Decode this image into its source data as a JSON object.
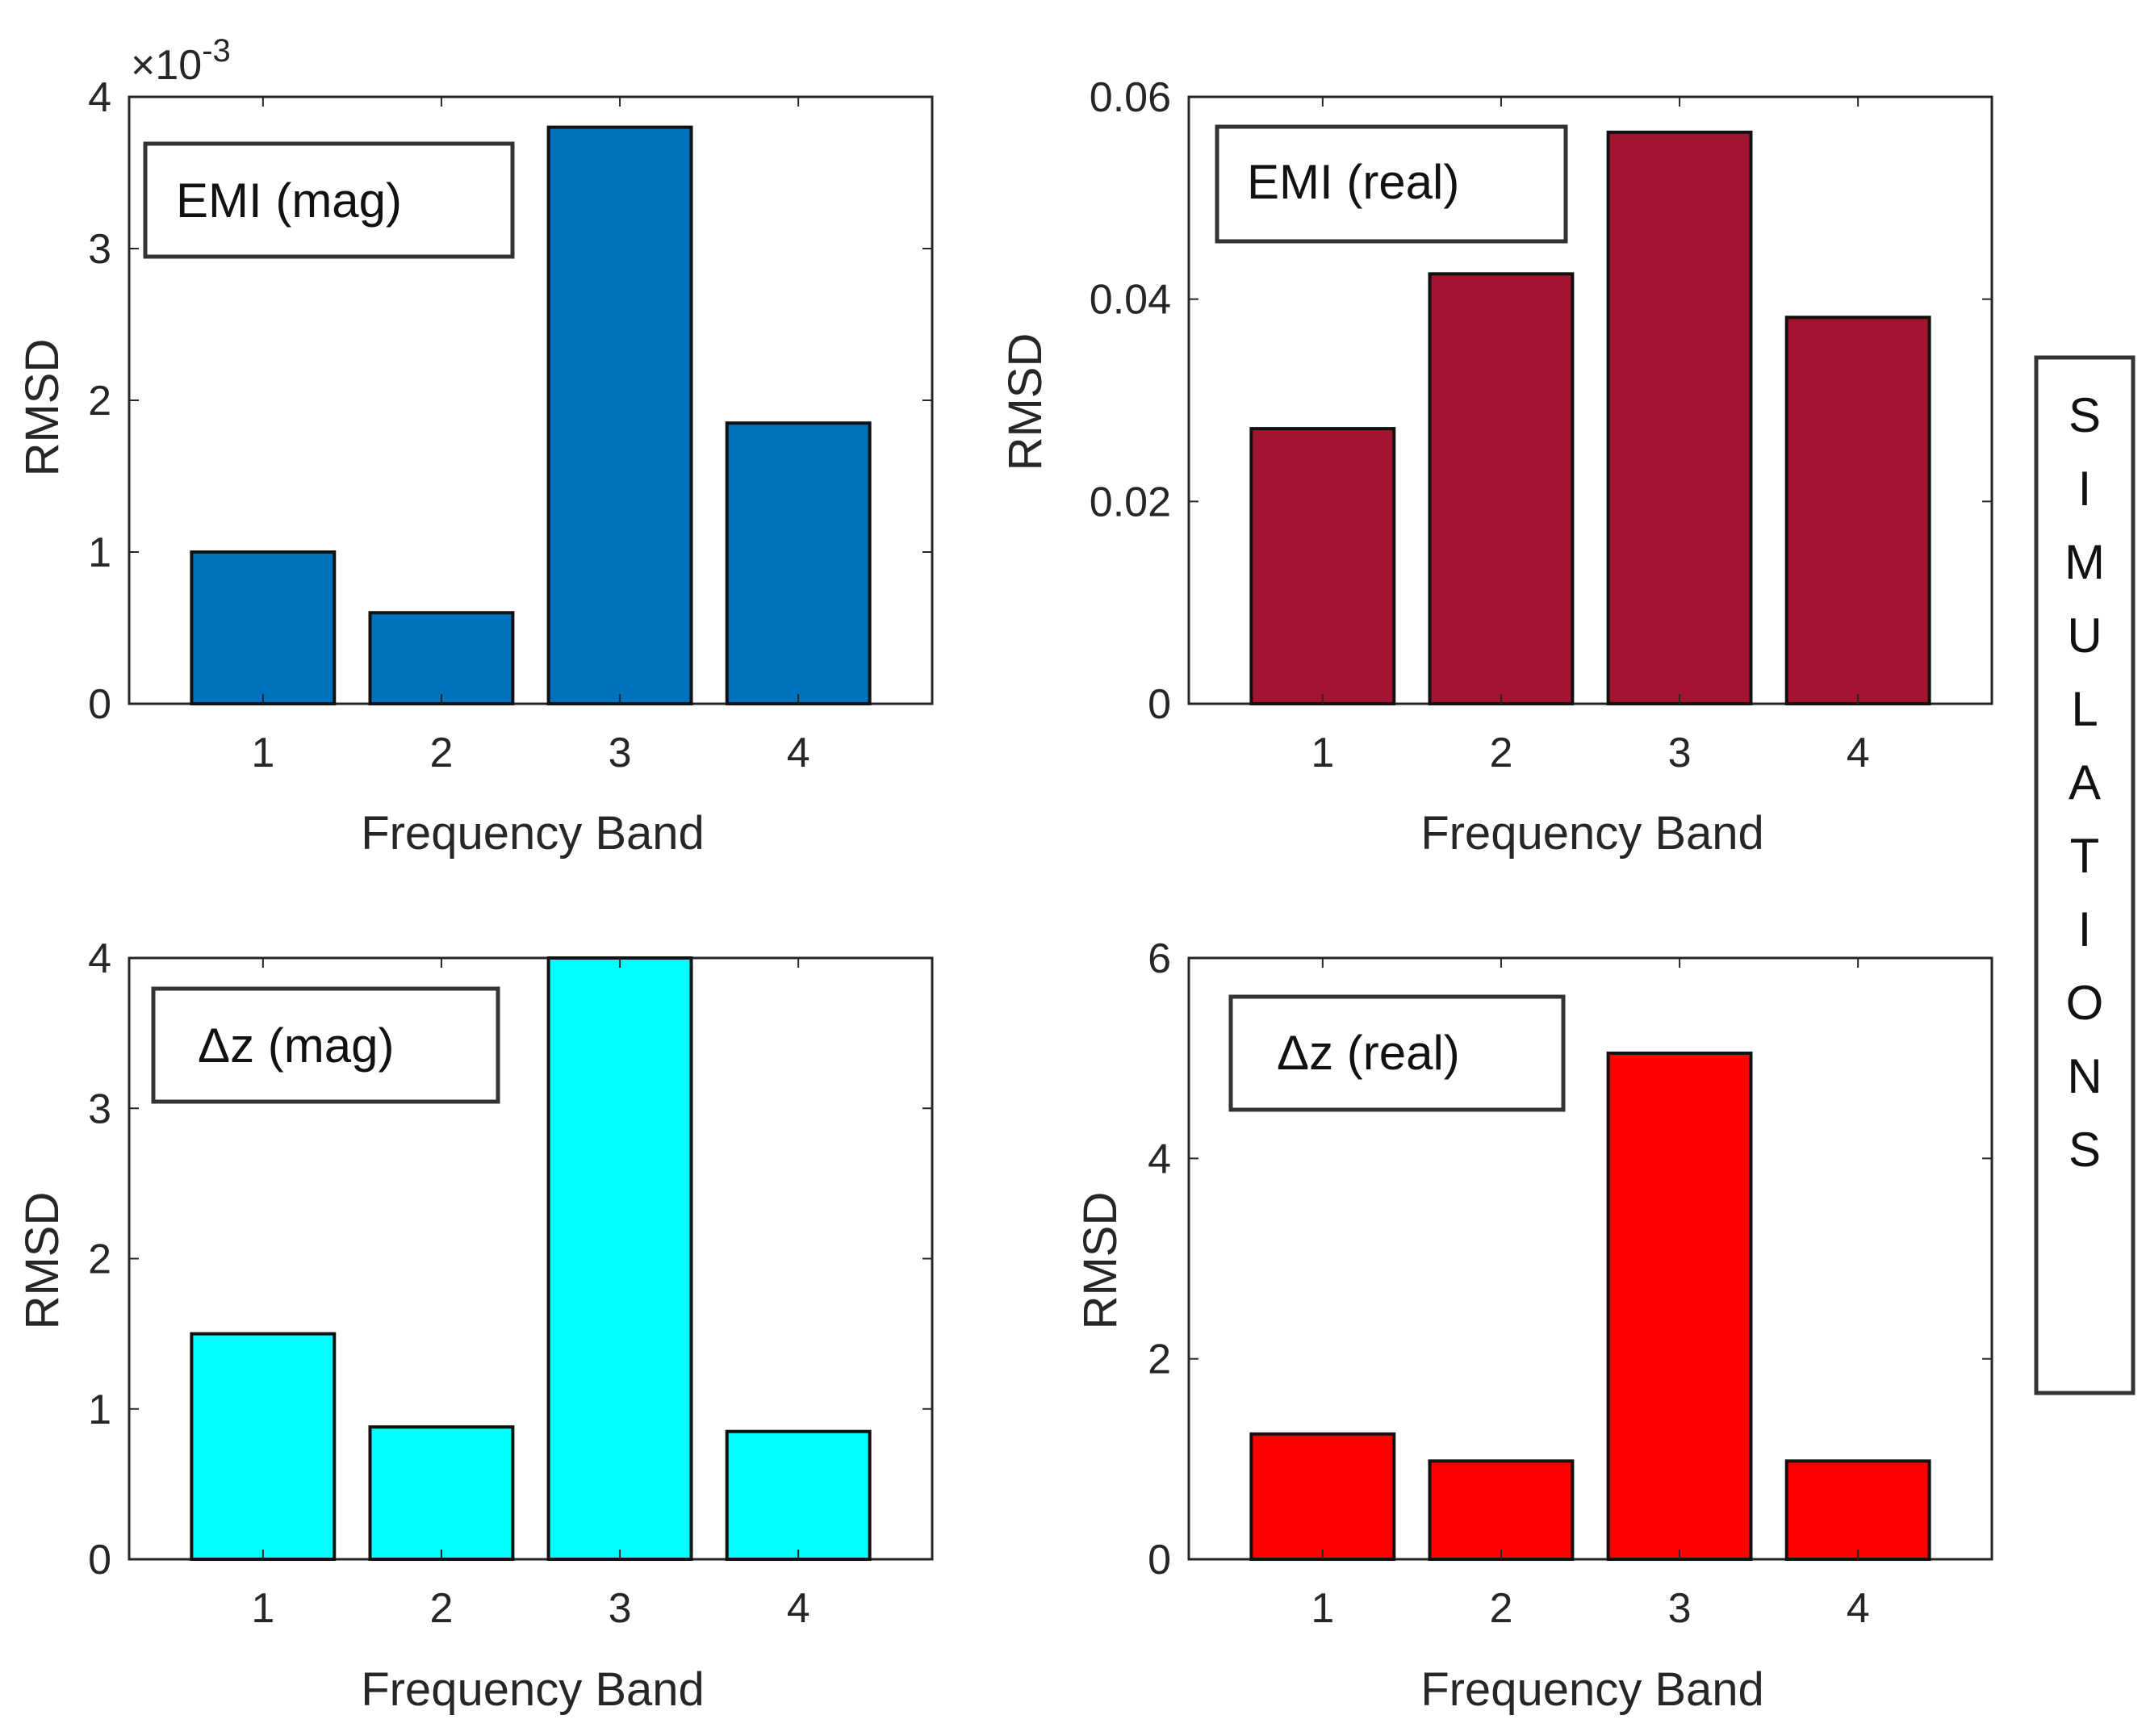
{
  "side_label": "SIMULATIONS",
  "chart_data": [
    {
      "type": "bar",
      "legend": "EMI (mag)",
      "categories": [
        "1",
        "2",
        "3",
        "4"
      ],
      "values": [
        0.001,
        0.0006,
        0.0038,
        0.00185
      ],
      "xlabel": "Frequency Band",
      "ylabel": "RMSD",
      "ylim": [
        0,
        0.004
      ],
      "yticks": [
        0,
        0.001,
        0.002,
        0.003,
        0.004
      ],
      "ytick_labels": [
        "0",
        "1",
        "2",
        "3",
        "4"
      ],
      "y_multiplier": "×10",
      "y_exponent": "-3",
      "color": "#0072BD"
    },
    {
      "type": "bar",
      "legend": "EMI (real)",
      "categories": [
        "1",
        "2",
        "3",
        "4"
      ],
      "values": [
        0.0272,
        0.0425,
        0.0565,
        0.0382
      ],
      "xlabel": "Frequency Band",
      "ylabel": "RMSD",
      "ylim": [
        0,
        0.06
      ],
      "yticks": [
        0,
        0.02,
        0.04,
        0.06
      ],
      "ytick_labels": [
        "0",
        "0.02",
        "0.04",
        "0.06"
      ],
      "color": "#A2142F"
    },
    {
      "type": "bar",
      "legend": "Δz (mag)",
      "categories": [
        "1",
        "2",
        "3",
        "4"
      ],
      "values": [
        1.5,
        0.88,
        4.0,
        0.85
      ],
      "xlabel": "Frequency Band",
      "ylabel": "RMSD",
      "ylim": [
        0,
        4
      ],
      "yticks": [
        0,
        1,
        2,
        3,
        4
      ],
      "ytick_labels": [
        "0",
        "1",
        "2",
        "3",
        "4"
      ],
      "color": "#00FFFF"
    },
    {
      "type": "bar",
      "legend": "Δz (real)",
      "categories": [
        "1",
        "2",
        "3",
        "4"
      ],
      "values": [
        1.25,
        0.98,
        5.05,
        0.98
      ],
      "xlabel": "Frequency Band",
      "ylabel": "RMSD",
      "ylim": [
        0,
        6
      ],
      "yticks": [
        0,
        2,
        4,
        6
      ],
      "ytick_labels": [
        "0",
        "2",
        "4",
        "6"
      ],
      "color": "#FF0000"
    }
  ]
}
